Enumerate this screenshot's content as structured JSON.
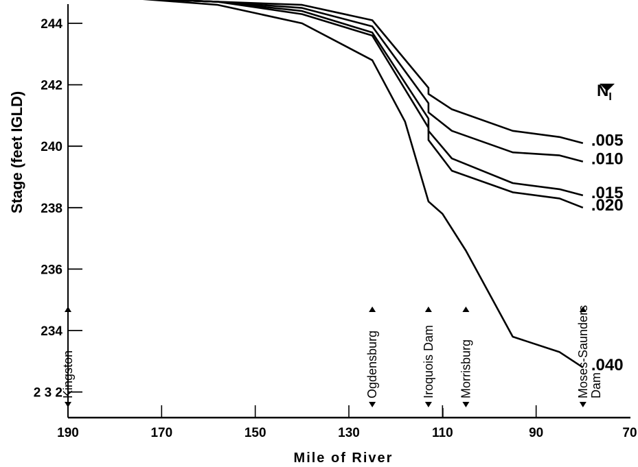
{
  "chart_data": {
    "type": "line",
    "xlabel": "Mile of River",
    "ylabel": "Stage (feet IGLD)",
    "xlim": [
      190,
      70
    ],
    "ylim": [
      232,
      245
    ],
    "x_ticks": [
      190,
      170,
      150,
      130,
      110,
      90,
      70
    ],
    "y_ticks": [
      {
        "value": 244,
        "label": "244"
      },
      {
        "value": 242,
        "label": "242"
      },
      {
        "value": 240,
        "label": "240"
      },
      {
        "value": 238,
        "label": "238"
      },
      {
        "value": 236,
        "label": "236"
      },
      {
        "value": 234,
        "label": "234"
      },
      {
        "value": 232,
        "label": "2 3 2"
      }
    ],
    "legend_title": "N",
    "legend_subscript": "I",
    "stations": [
      {
        "label": "Kingston",
        "mile": 190
      },
      {
        "label": "Ogdensburg",
        "mile": 125
      },
      {
        "label": "Iroquois Dam",
        "mile": 113
      },
      {
        "label": "Morrisburg",
        "mile": 105
      },
      {
        "label": "Moses-Saunders",
        "label2": "Dam",
        "mile": 80
      }
    ],
    "series": [
      {
        "name": ".005",
        "x": [
          190,
          175,
          158,
          140,
          125,
          113,
          113,
          108,
          95,
          85,
          80
        ],
        "y": [
          244.8,
          244.8,
          244.7,
          244.6,
          244.1,
          241.9,
          241.7,
          241.2,
          240.5,
          240.3,
          240.1
        ]
      },
      {
        "name": ".010",
        "x": [
          190,
          175,
          158,
          140,
          125,
          113,
          113,
          108,
          95,
          85,
          80
        ],
        "y": [
          244.8,
          244.8,
          244.7,
          244.5,
          243.9,
          241.4,
          241.1,
          240.5,
          239.8,
          239.7,
          239.5
        ]
      },
      {
        "name": ".015",
        "x": [
          190,
          175,
          158,
          140,
          125,
          113,
          113,
          108,
          95,
          85,
          80
        ],
        "y": [
          244.8,
          244.8,
          244.7,
          244.4,
          243.7,
          240.9,
          240.5,
          239.6,
          238.8,
          238.6,
          238.4
        ]
      },
      {
        "name": ".020",
        "x": [
          190,
          175,
          158,
          140,
          125,
          113,
          113,
          108,
          95,
          85,
          80
        ],
        "y": [
          244.8,
          244.8,
          244.7,
          244.3,
          243.6,
          240.6,
          240.2,
          239.2,
          238.5,
          238.3,
          238.0
        ]
      },
      {
        "name": ".040",
        "x": [
          190,
          175,
          158,
          140,
          125,
          118,
          113,
          110,
          105,
          100,
          95,
          85,
          80
        ],
        "y": [
          244.8,
          244.8,
          244.6,
          244.0,
          242.8,
          240.8,
          238.2,
          237.8,
          236.6,
          235.2,
          233.8,
          233.3,
          232.8
        ]
      }
    ]
  }
}
